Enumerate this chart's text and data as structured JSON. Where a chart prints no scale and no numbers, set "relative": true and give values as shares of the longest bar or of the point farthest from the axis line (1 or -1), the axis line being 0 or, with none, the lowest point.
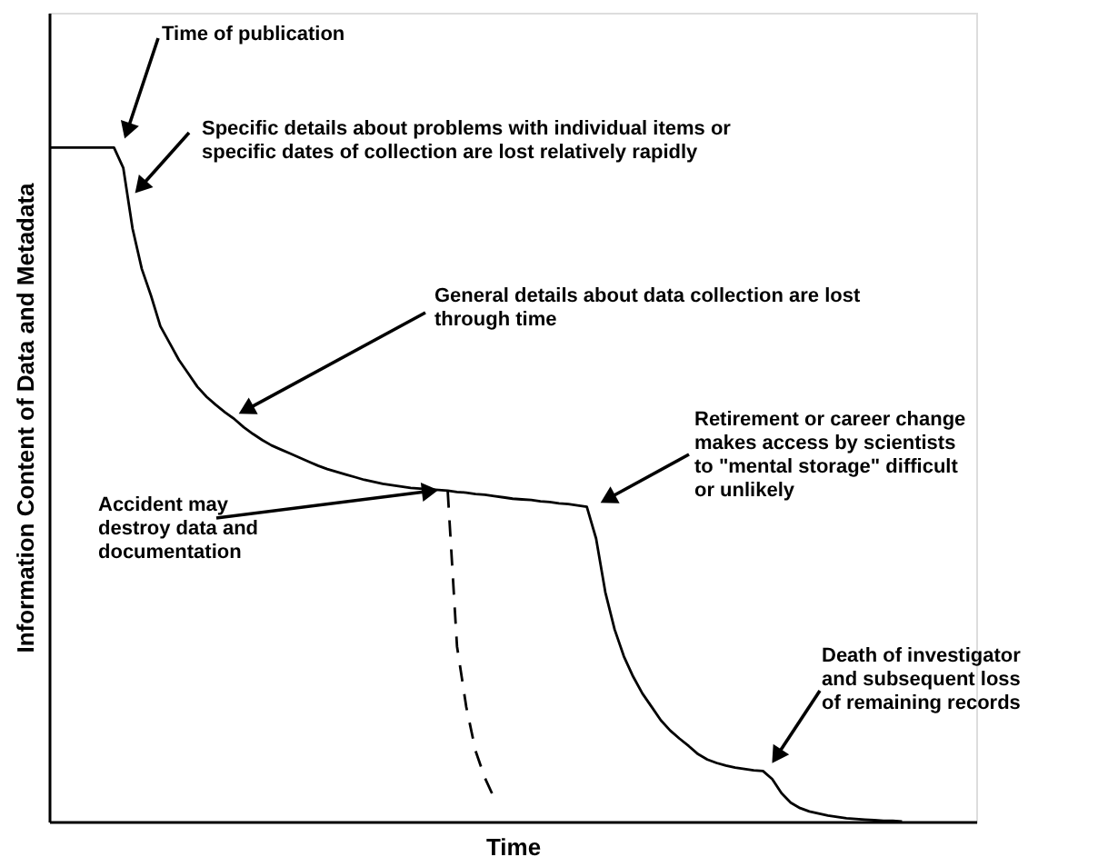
{
  "chart_data": {
    "type": "line",
    "relative": true,
    "xlabel": "Time",
    "ylabel": "Information Content of Data and Metadata",
    "tick_labels": false,
    "categories": [
      null,
      null,
      null,
      null,
      null,
      null,
      null,
      null,
      null,
      null,
      null,
      null,
      null,
      null,
      null,
      null,
      null,
      null,
      null,
      null,
      null,
      null,
      null,
      null,
      null,
      null,
      null,
      null,
      null,
      null,
      null,
      null,
      null,
      null,
      null,
      null,
      null,
      null,
      null,
      null,
      null,
      null,
      null,
      null,
      null,
      null,
      null,
      null,
      null,
      null,
      null,
      null,
      null,
      null,
      null,
      null,
      null,
      null,
      null,
      null,
      null,
      null,
      null,
      null,
      null,
      null,
      null,
      null,
      null,
      null,
      null,
      null,
      null,
      null,
      null,
      null,
      null,
      null,
      null,
      null,
      null,
      null,
      null,
      null,
      null,
      null,
      null,
      null,
      null,
      null,
      null,
      null,
      null,
      null,
      null,
      null,
      null,
      null,
      null,
      null,
      null
    ],
    "series": [
      {
        "color": "#000000",
        "line_style": "solid",
        "values": [
          1,
          1,
          1,
          1,
          1,
          1,
          1,
          1,
          0.97,
          0.88,
          0.82,
          0.78,
          0.735,
          0.71,
          0.685,
          0.665,
          0.645,
          0.63,
          0.618,
          0.607,
          0.597,
          0.585,
          0.575,
          0.566,
          0.558,
          0.552,
          0.546,
          0.54,
          0.534,
          0.528,
          0.523,
          0.519,
          0.515,
          0.511,
          0.507,
          0.504,
          0.501,
          0.499,
          0.497,
          0.495,
          0.494,
          0.493,
          0.492,
          0.491,
          0.489,
          0.488,
          0.486,
          0.485,
          0.483,
          0.481,
          0.479,
          0.478,
          0.477,
          0.475,
          0.474,
          0.472,
          0.471,
          0.469,
          0.467,
          0.42,
          0.34,
          0.285,
          0.245,
          0.215,
          0.19,
          0.17,
          0.15,
          0.135,
          0.123,
          0.112,
          0.1,
          0.092,
          0.087,
          0.083,
          0.08,
          0.078,
          0.076,
          0.075,
          0.063,
          0.042,
          0.028,
          0.02,
          0.015,
          0.012,
          0.009,
          0.007,
          0.005,
          0.004,
          0.003,
          0.002,
          0.001,
          0.001,
          0,
          null,
          null,
          null,
          null,
          null,
          null,
          null,
          null
        ]
      },
      {
        "color": "#000000",
        "line_style": "dashed",
        "values": [
          null,
          null,
          null,
          null,
          null,
          null,
          null,
          null,
          null,
          null,
          null,
          null,
          null,
          null,
          null,
          null,
          null,
          null,
          null,
          null,
          null,
          null,
          null,
          null,
          null,
          null,
          null,
          null,
          null,
          null,
          null,
          null,
          null,
          null,
          null,
          null,
          null,
          null,
          null,
          null,
          null,
          null,
          null,
          0.49,
          0.26,
          0.17,
          0.105,
          0.065,
          0.035,
          null,
          null,
          null,
          null,
          null,
          null,
          null,
          null,
          null,
          null,
          null,
          null,
          null,
          null,
          null,
          null,
          null,
          null,
          null,
          null,
          null,
          null,
          null,
          null,
          null,
          null,
          null,
          null,
          null,
          null,
          null,
          null,
          null,
          null,
          null,
          null,
          null,
          null,
          null,
          null,
          null,
          null,
          null,
          null,
          null,
          null,
          null,
          null,
          null,
          null,
          null,
          null
        ]
      }
    ],
    "annotations": [
      "Time of publication",
      "Specific details about problems with individual items or\nspecific dates of collection are lost relatively rapidly",
      "General details about data collection are lost\nthrough time",
      "Accident may\ndestroy data and\ndocumentation",
      "Retirement or career change\nmakes access by scientists\nto \"mental storage\" difficult\nor unlikely",
      "Death of investigator\nand subsequent loss\nof remaining records"
    ]
  }
}
